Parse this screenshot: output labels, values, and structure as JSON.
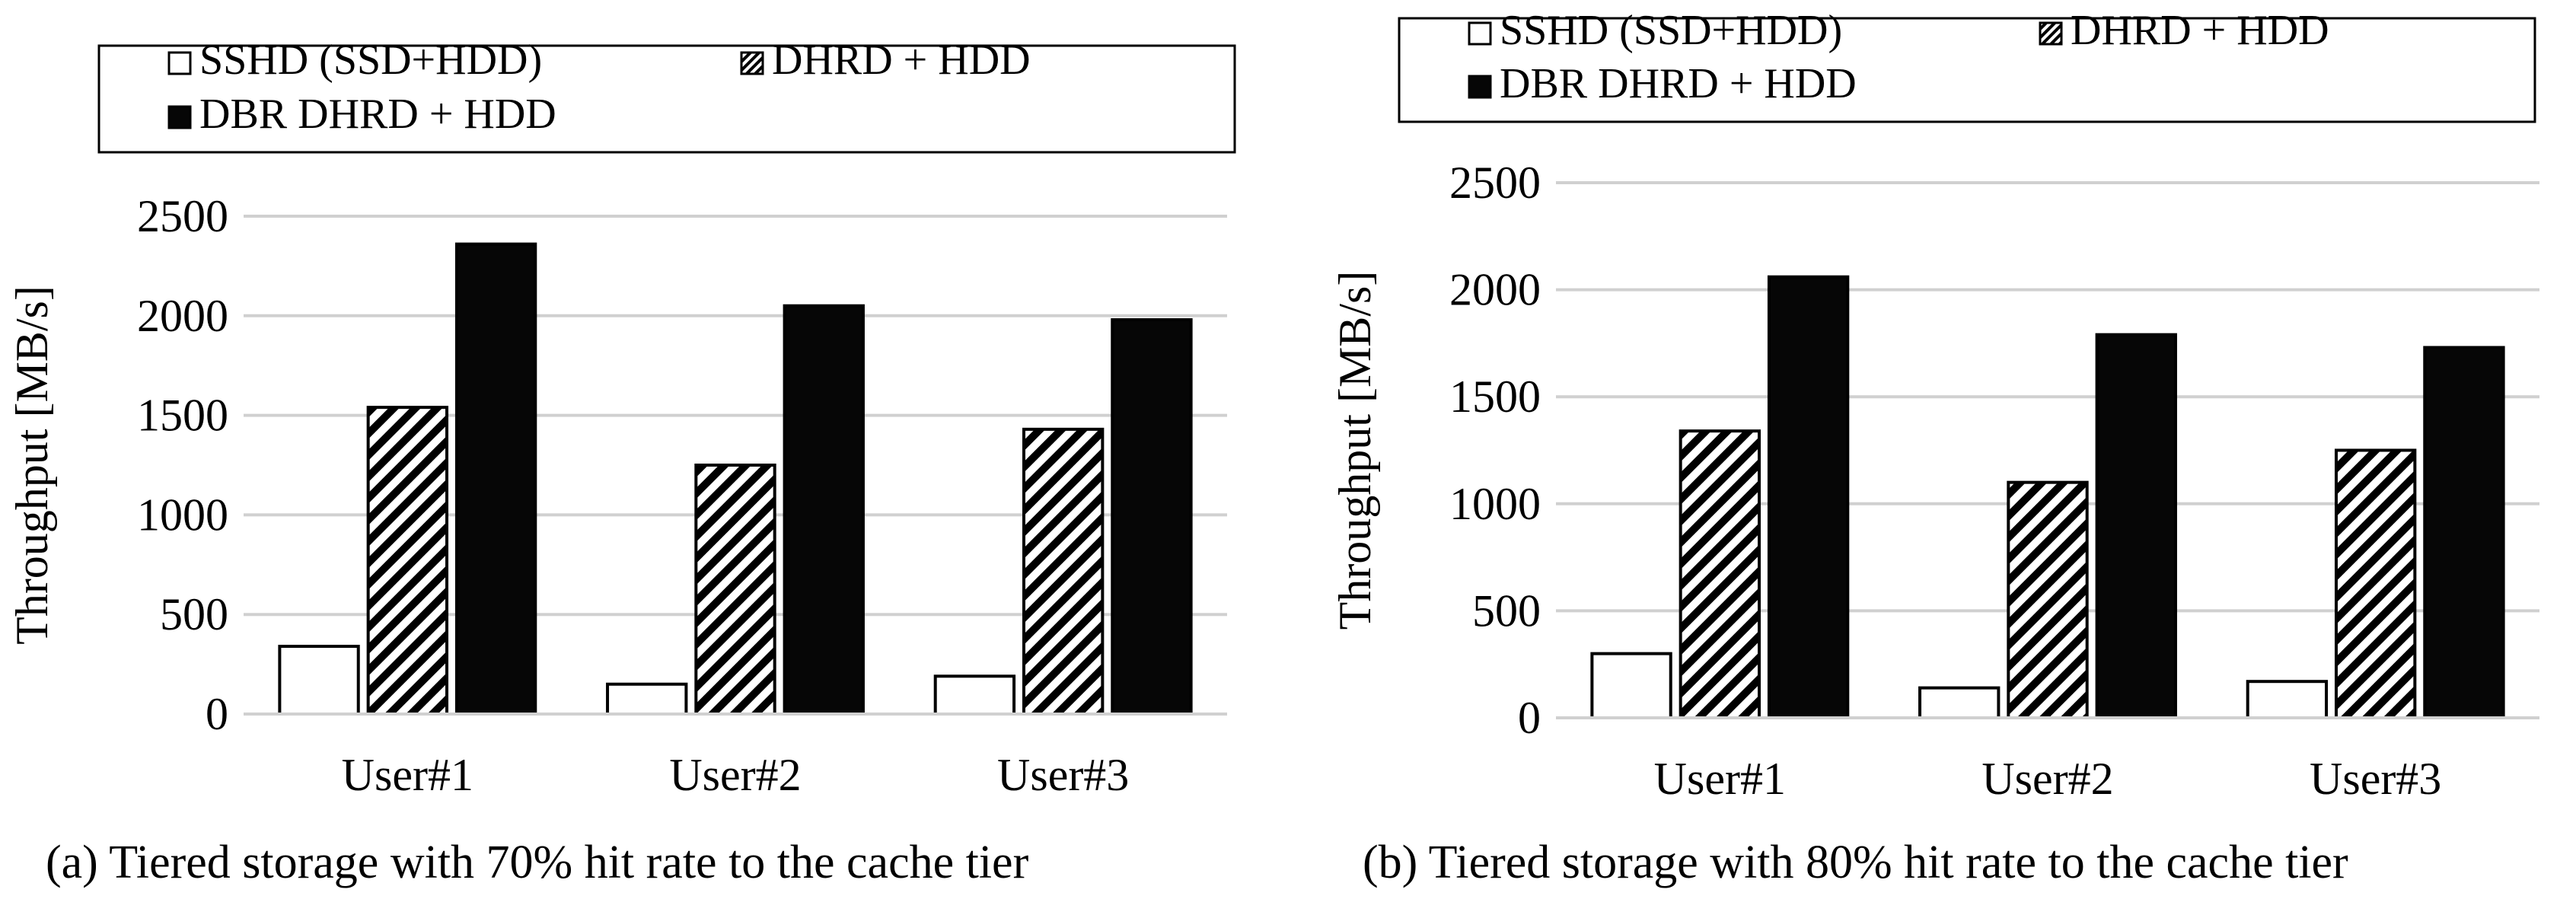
{
  "colors": {
    "sshd": "#ffffff",
    "dhrd": "hatch",
    "dbr": "#060606",
    "grid": "#d0d0d0",
    "stroke": "#000000"
  },
  "chart_data": [
    {
      "type": "bar",
      "categories": [
        "User#1",
        "User#2",
        "User#3"
      ],
      "series": [
        {
          "name": "SSHD (SSD+HDD)",
          "values": [
            340,
            150,
            190
          ]
        },
        {
          "name": "DHRD + HDD",
          "values": [
            1540,
            1250,
            1430
          ]
        },
        {
          "name": "DBR DHRD + HDD",
          "values": [
            2360,
            2050,
            1980
          ]
        }
      ],
      "ylabel": "Throughput [MB/s]",
      "yticks": [
        0,
        500,
        1000,
        1500,
        2000,
        2500
      ],
      "ylim": [
        0,
        2500
      ],
      "grid": true,
      "legend": "top",
      "caption": "(a)  Tiered storage with 70% hit rate to the cache tier"
    },
    {
      "type": "bar",
      "categories": [
        "User#1",
        "User#2",
        "User#3"
      ],
      "series": [
        {
          "name": "SSHD (SSD+HDD)",
          "values": [
            300,
            140,
            170
          ]
        },
        {
          "name": "DHRD + HDD",
          "values": [
            1340,
            1100,
            1250
          ]
        },
        {
          "name": "DBR DHRD + HDD",
          "values": [
            2060,
            1790,
            1730
          ]
        }
      ],
      "ylabel": "Throughput [MB/s]",
      "yticks": [
        0,
        500,
        1000,
        1500,
        2000,
        2500
      ],
      "ylim": [
        0,
        2500
      ],
      "grid": true,
      "legend": "top",
      "caption": "(b)  Tiered storage with 80% hit rate to the cache tier"
    }
  ]
}
